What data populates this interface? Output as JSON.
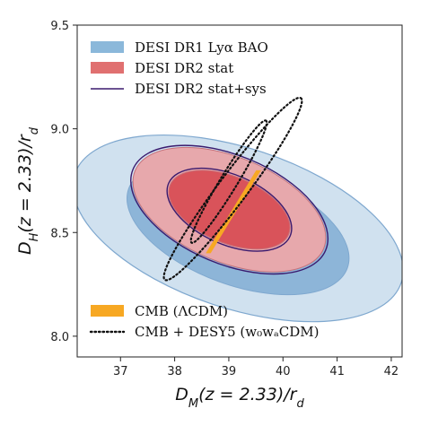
{
  "chart_data": {
    "type": "scatter",
    "subtype": "confidence-ellipses",
    "title": "",
    "xlabel": "D_M(z = 2.33)/r_d",
    "ylabel": "D_H(z = 2.33)/r_d",
    "xlim": [
      36.2,
      42.2
    ],
    "ylim": [
      7.9,
      9.5
    ],
    "xticks": [
      37,
      38,
      39,
      40,
      41,
      42
    ],
    "yticks": [
      8.0,
      8.5,
      9.0,
      9.5
    ],
    "xtick_labels": [
      "37",
      "38",
      "39",
      "40",
      "41",
      "42"
    ],
    "ytick_labels": [
      "8.0",
      "8.5",
      "9.0",
      "9.5"
    ],
    "grid": false,
    "legend_top": [
      {
        "label": "DESI DR1 Lyα BAO",
        "style": "fill",
        "color": "#8bb8da"
      },
      {
        "label": "DESI DR2 stat",
        "style": "fill",
        "color": "#e07070"
      },
      {
        "label": "DESI DR2 stat+sys",
        "style": "line",
        "color": "#3a1a6e"
      }
    ],
    "legend_bottom": [
      {
        "label": "CMB (ΛCDM)",
        "style": "fill",
        "color": "#f7a823"
      },
      {
        "label": "CMB + DESY5 (w₀wₐCDM)",
        "style": "dotted",
        "color": "#111111"
      }
    ],
    "series": [
      {
        "name": "DESI DR1 Lyα BAO",
        "kind": "ellipse",
        "center": [
          39.17,
          8.52
        ],
        "half_extent_x": [
          2.05,
          3.05
        ],
        "half_extent_y": [
          0.32,
          0.45
        ],
        "tilt": "negative",
        "colors": {
          "inner": "#8db5d8",
          "outer": "#d0e1ef",
          "edge": "#7fa8cf"
        }
      },
      {
        "name": "DESI DR2 stat",
        "kind": "ellipse",
        "center": [
          39.01,
          8.61
        ],
        "half_extent_x": [
          1.12,
          1.78
        ],
        "half_extent_y": [
          0.19,
          0.3
        ],
        "tilt": "negative",
        "colors": {
          "inner": "#d9535a",
          "outer": "#e7a8ac",
          "edge": "#c6717a"
        }
      },
      {
        "name": "DESI DR2 stat+sys",
        "kind": "ellipse-outline",
        "center": [
          39.01,
          8.61
        ],
        "half_extent_x": [
          1.15,
          1.82
        ],
        "half_extent_y": [
          0.2,
          0.31
        ],
        "tilt": "negative",
        "colors": {
          "edge": "#3a1a6e"
        }
      },
      {
        "name": "CMB (ΛCDM)",
        "kind": "band",
        "x": [
          38.62,
          39.55
        ],
        "y": [
          8.4,
          8.8
        ],
        "width": 0.09,
        "colors": {
          "fill": "#f7a823"
        }
      },
      {
        "name": "CMB + DESY5 (w₀wₐCDM)",
        "kind": "dotted-contours",
        "x_range_inner": [
          38.3,
          39.7
        ],
        "x_range_outer": [
          37.8,
          40.35
        ],
        "y_range_inner": [
          8.45,
          9.04
        ],
        "y_range_outer": [
          8.27,
          9.15
        ],
        "tilt": "positive",
        "colors": {
          "edge": "#111111"
        }
      }
    ]
  }
}
